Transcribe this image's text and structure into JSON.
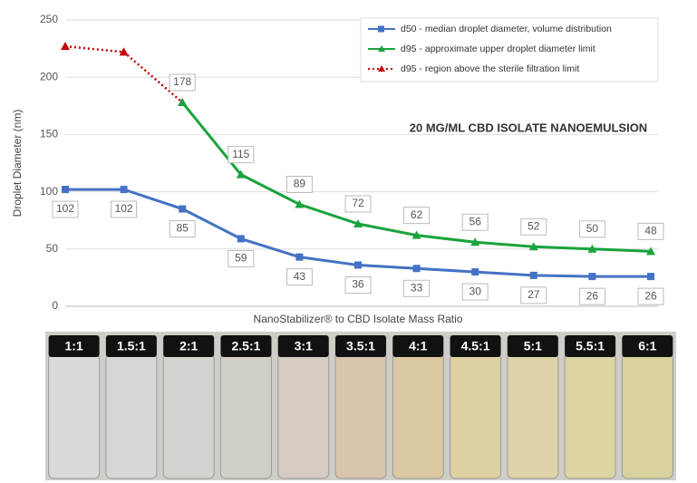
{
  "chart_data": {
    "type": "line",
    "y_label": "Droplet Diameter (nm)",
    "x_label": "NanoStabilizer® to CBD Isolate Mass Ratio",
    "annotation": "20 MG/ML CBD ISOLATE NANOEMULSION",
    "categories": [
      "1:1",
      "1.5:1",
      "2:1",
      "2.5:1",
      "3:1",
      "3.5:1",
      "4:1",
      "4.5:1",
      "5:1",
      "5.5:1",
      "6:1"
    ],
    "series": [
      {
        "name": "d50 - median droplet diameter, volume distribution",
        "color": "#4472c4",
        "marker": "square",
        "dash": false,
        "label_side": "below",
        "values": [
          102,
          102,
          85,
          59,
          43,
          36,
          33,
          30,
          27,
          26,
          26
        ]
      },
      {
        "name": "d95 - approximate upper droplet diameter limit",
        "color": "#19a33c",
        "marker": "triangle",
        "dash": false,
        "label_side": "above",
        "values": [
          null,
          null,
          178,
          115,
          89,
          72,
          62,
          56,
          52,
          50,
          48
        ]
      },
      {
        "name": "d95 - region above the sterile filtration limit",
        "color": "#c00000",
        "marker": "triangle",
        "dash": true,
        "label_side": "below",
        "values": [
          227,
          222,
          178,
          null,
          null,
          null,
          null,
          null,
          null,
          null,
          null
        ]
      }
    ],
    "ylim": [
      0,
      250
    ],
    "yticks": [
      0,
      50,
      100,
      150,
      200,
      250
    ],
    "grid": true
  }
}
